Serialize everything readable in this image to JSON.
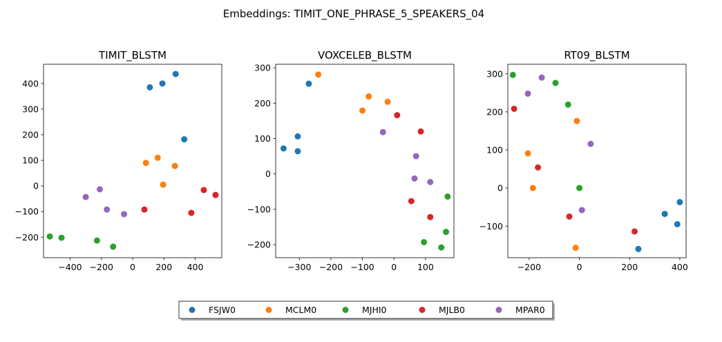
{
  "figure": {
    "suptitle": "Embeddings: TIMIT_ONE_PHRASE_5_SPEAKERS_04"
  },
  "legend": {
    "placement": "bottom-center",
    "entries": [
      {
        "label": "FSJW0",
        "color": "#1f77b4"
      },
      {
        "label": "MCLM0",
        "color": "#ff7f0e"
      },
      {
        "label": "MJHI0",
        "color": "#2ca02c"
      },
      {
        "label": "MJLB0",
        "color": "#d62728"
      },
      {
        "label": "MPAR0",
        "color": "#9467bd"
      }
    ]
  },
  "chart_data": [
    {
      "type": "scatter",
      "title": "TIMIT_BLSTM",
      "xlabel": "",
      "ylabel": "",
      "xlim": [
        -570,
        570
      ],
      "ylim": [
        -280,
        475
      ],
      "xticks": [
        -400,
        -200,
        0,
        200,
        400
      ],
      "yticks": [
        -200,
        -100,
        0,
        100,
        200,
        300,
        400
      ],
      "grid": false,
      "series": [
        {
          "name": "FSJW0",
          "color": "#1f77b4",
          "points": [
            [
              110,
              385
            ],
            [
              190,
              400
            ],
            [
              275,
              437
            ],
            [
              330,
              182
            ]
          ]
        },
        {
          "name": "MCLM0",
          "color": "#ff7f0e",
          "points": [
            [
              85,
              90
            ],
            [
              160,
              110
            ],
            [
              270,
              78
            ],
            [
              195,
              5
            ]
          ]
        },
        {
          "name": "MJHI0",
          "color": "#2ca02c",
          "points": [
            [
              -530,
              -197
            ],
            [
              -455,
              -202
            ],
            [
              -228,
              -213
            ],
            [
              -125,
              -237
            ]
          ]
        },
        {
          "name": "MJLB0",
          "color": "#d62728",
          "points": [
            [
              75,
              -92
            ],
            [
              375,
              -105
            ],
            [
              455,
              -16
            ],
            [
              530,
              -35
            ]
          ]
        },
        {
          "name": "MPAR0",
          "color": "#9467bd",
          "points": [
            [
              -300,
              -43
            ],
            [
              -210,
              -13
            ],
            [
              -165,
              -92
            ],
            [
              -55,
              -110
            ]
          ]
        }
      ]
    },
    {
      "type": "scatter",
      "title": "VOXCELEB_BLSTM",
      "xlabel": "",
      "ylabel": "",
      "xlim": [
        -375,
        190
      ],
      "ylim": [
        -237,
        310
      ],
      "xticks": [
        -300,
        -200,
        -100,
        0,
        100
      ],
      "yticks": [
        -200,
        -100,
        0,
        100,
        200,
        300
      ],
      "grid": false,
      "series": [
        {
          "name": "FSJW0",
          "color": "#1f77b4",
          "points": [
            [
              -270,
              255
            ],
            [
              -305,
              106
            ],
            [
              -350,
              72
            ],
            [
              -305,
              64
            ]
          ]
        },
        {
          "name": "MCLM0",
          "color": "#ff7f0e",
          "points": [
            [
              -240,
              281
            ],
            [
              -80,
              219
            ],
            [
              -20,
              204
            ],
            [
              -100,
              179
            ]
          ]
        },
        {
          "name": "MJHI0",
          "color": "#2ca02c",
          "points": [
            [
              170,
              -64
            ],
            [
              165,
              -164
            ],
            [
              95,
              -193
            ],
            [
              150,
              -208
            ]
          ]
        },
        {
          "name": "MJLB0",
          "color": "#d62728",
          "points": [
            [
              10,
              166
            ],
            [
              85,
              120
            ],
            [
              55,
              -77
            ],
            [
              115,
              -122
            ]
          ]
        },
        {
          "name": "MPAR0",
          "color": "#9467bd",
          "points": [
            [
              -35,
              118
            ],
            [
              70,
              50
            ],
            [
              65,
              -13
            ],
            [
              115,
              -23
            ]
          ]
        }
      ]
    },
    {
      "type": "scatter",
      "title": "RT09_BLSTM",
      "xlabel": "",
      "ylabel": "",
      "xlim": [
        -285,
        425
      ],
      "ylim": [
        -183,
        325
      ],
      "xticks": [
        -200,
        0,
        200,
        400
      ],
      "yticks": [
        -100,
        0,
        100,
        200,
        300
      ],
      "grid": false,
      "series": [
        {
          "name": "FSJW0",
          "color": "#1f77b4",
          "points": [
            [
              400,
              -37
            ],
            [
              340,
              -68
            ],
            [
              390,
              -95
            ],
            [
              235,
              -160
            ]
          ]
        },
        {
          "name": "MCLM0",
          "color": "#ff7f0e",
          "points": [
            [
              -10,
              176
            ],
            [
              -205,
              91
            ],
            [
              -185,
              0
            ],
            [
              -15,
              -157
            ]
          ]
        },
        {
          "name": "MJHI0",
          "color": "#2ca02c",
          "points": [
            [
              -265,
              297
            ],
            [
              -95,
              276
            ],
            [
              -45,
              219
            ],
            [
              0,
              0
            ]
          ]
        },
        {
          "name": "MJLB0",
          "color": "#d62728",
          "points": [
            [
              -260,
              208
            ],
            [
              -165,
              54
            ],
            [
              -40,
              -75
            ],
            [
              220,
              -114
            ]
          ]
        },
        {
          "name": "MPAR0",
          "color": "#9467bd",
          "points": [
            [
              -150,
              290
            ],
            [
              -205,
              248
            ],
            [
              45,
              116
            ],
            [
              10,
              -58
            ]
          ]
        }
      ]
    }
  ]
}
